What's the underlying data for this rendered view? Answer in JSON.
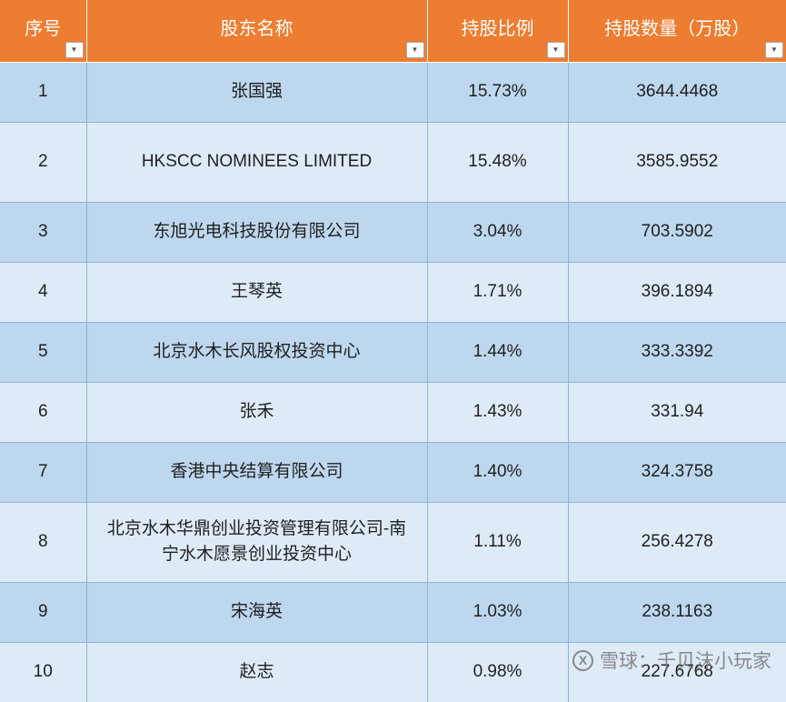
{
  "table": {
    "columns": [
      {
        "label": "序号"
      },
      {
        "label": "股东名称"
      },
      {
        "label": "持股比例"
      },
      {
        "label": "持股数量（万股）"
      }
    ],
    "rows": [
      {
        "index": "1",
        "name": "张国强",
        "ratio": "15.73%",
        "shares": "3644.4468"
      },
      {
        "index": "2",
        "name": "HKSCC NOMINEES LIMITED",
        "ratio": "15.48%",
        "shares": "3585.9552"
      },
      {
        "index": "3",
        "name": "东旭光电科技股份有限公司",
        "ratio": "3.04%",
        "shares": "703.5902"
      },
      {
        "index": "4",
        "name": "王琴英",
        "ratio": "1.71%",
        "shares": "396.1894"
      },
      {
        "index": "5",
        "name": "北京水木长风股权投资中心",
        "ratio": "1.44%",
        "shares": "333.3392"
      },
      {
        "index": "6",
        "name": "张禾",
        "ratio": "1.43%",
        "shares": "331.94"
      },
      {
        "index": "7",
        "name": "香港中央结算有限公司",
        "ratio": "1.40%",
        "shares": "324.3758"
      },
      {
        "index": "8",
        "name": "北京水木华鼎创业投资管理有限公司-南宁水木愿景创业投资中心",
        "ratio": "1.11%",
        "shares": "256.4278"
      },
      {
        "index": "9",
        "name": "宋海英",
        "ratio": "1.03%",
        "shares": "238.1163"
      },
      {
        "index": "10",
        "name": "赵志",
        "ratio": "0.98%",
        "shares": "227.6768"
      }
    ]
  },
  "ui": {
    "filter_icon": "▼",
    "watermark_logo": "X"
  },
  "watermark": {
    "text": "雪球：千贝沫小玩家"
  },
  "colors": {
    "header_bg": "#ED7D31",
    "row_odd": "#BDD7EE",
    "row_even": "#DEEBF7",
    "border": "#8FB3D6"
  }
}
